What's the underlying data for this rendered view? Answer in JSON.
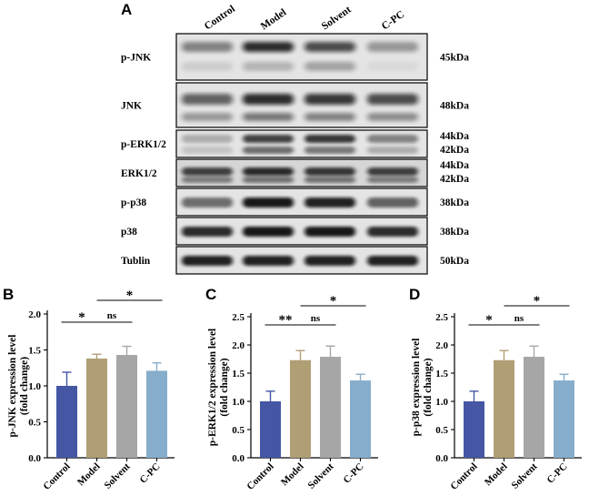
{
  "panels": {
    "a": "A",
    "b": "B",
    "c": "C",
    "d": "D"
  },
  "colors": {
    "Control": "#4456a4",
    "Model": "#b09e75",
    "Solvent": "#a6a6a6",
    "C-PC": "#86adcb"
  },
  "blot": {
    "lanes": [
      "Control",
      "Model",
      "Solvent",
      "C-PC"
    ],
    "rows": [
      {
        "label": "p-JNK",
        "sizes": [
          "45kDa"
        ]
      },
      {
        "label": "JNK",
        "sizes": [
          "48kDa"
        ]
      },
      {
        "label": "p-ERK1/2",
        "sizes": [
          "44kDa",
          "42kDa"
        ]
      },
      {
        "label": "ERK1/2",
        "sizes": [
          "44kDa",
          "42kDa"
        ]
      },
      {
        "label": "p-p38",
        "sizes": [
          "38kDa"
        ]
      },
      {
        "label": "p38",
        "sizes": [
          "38kDa"
        ]
      },
      {
        "label": "Tublin",
        "sizes": [
          "50kDa"
        ]
      }
    ]
  },
  "chart_data": [
    {
      "type": "bar",
      "categories": [
        "Control",
        "Model",
        "Solvent",
        "C-PC"
      ],
      "values": [
        1.0,
        1.38,
        1.43,
        1.21
      ],
      "errors": [
        0.19,
        0.06,
        0.12,
        0.11
      ],
      "ylabel": [
        "p-JNK expression level",
        "(fold change)"
      ],
      "ylim": [
        0,
        2.0
      ],
      "yticks": [
        "0.0",
        "0.5",
        "1.0",
        "1.5",
        "2.0"
      ],
      "significance": [
        {
          "from": 0,
          "to": 1,
          "label": "*",
          "level": 1
        },
        {
          "from": 1,
          "to": 2,
          "label": "ns",
          "level": 1
        },
        {
          "from": 1,
          "to": 3,
          "label": "*",
          "level": 2
        }
      ]
    },
    {
      "type": "bar",
      "categories": [
        "Control",
        "Model",
        "Solvent",
        "C-PC"
      ],
      "values": [
        1.0,
        1.73,
        1.79,
        1.37
      ],
      "errors": [
        0.18,
        0.17,
        0.19,
        0.11
      ],
      "ylabel": [
        "p-ERK1/2 expression level",
        "(fold change)"
      ],
      "ylim": [
        0,
        2.5
      ],
      "yticks": [
        "0.0",
        "0.5",
        "1.0",
        "1.5",
        "2.0",
        "2.5"
      ],
      "significance": [
        {
          "from": 0,
          "to": 1,
          "label": "**",
          "level": 1
        },
        {
          "from": 1,
          "to": 2,
          "label": "ns",
          "level": 1
        },
        {
          "from": 1,
          "to": 3,
          "label": "*",
          "level": 2
        }
      ]
    },
    {
      "type": "bar",
      "categories": [
        "Control",
        "Model",
        "Solvent",
        "C-PC"
      ],
      "values": [
        1.0,
        1.73,
        1.79,
        1.37
      ],
      "errors": [
        0.18,
        0.17,
        0.19,
        0.11
      ],
      "ylabel": [
        "p-p38 expression level",
        "(fold change)"
      ],
      "ylim": [
        0,
        2.5
      ],
      "yticks": [
        "0.0",
        "0.5",
        "1.0",
        "1.5",
        "2.0",
        "2.5"
      ],
      "significance": [
        {
          "from": 0,
          "to": 1,
          "label": "*",
          "level": 1
        },
        {
          "from": 1,
          "to": 2,
          "label": "ns",
          "level": 1
        },
        {
          "from": 1,
          "to": 3,
          "label": "*",
          "level": 2
        }
      ]
    }
  ]
}
